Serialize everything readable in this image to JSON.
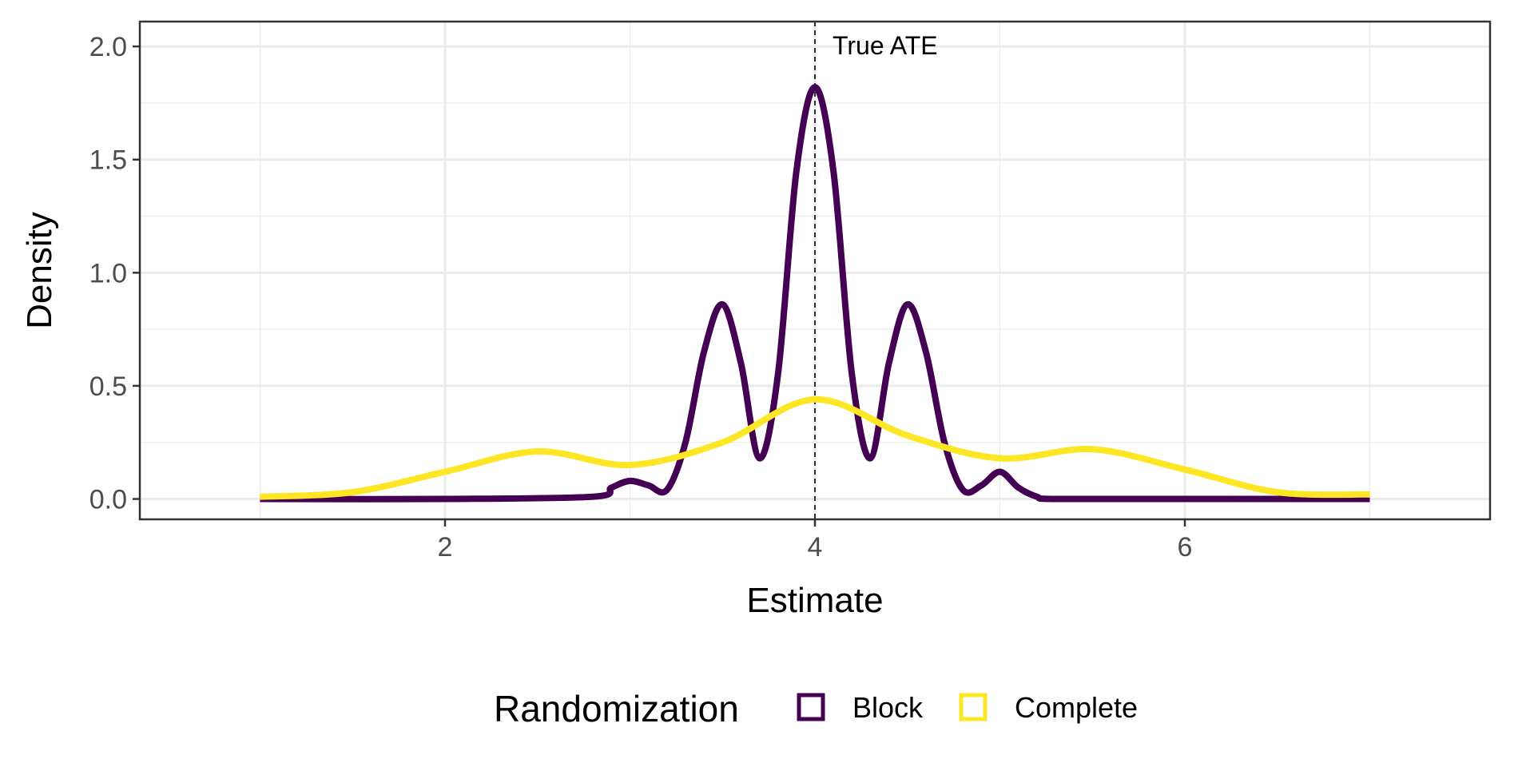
{
  "chart_data": {
    "type": "line",
    "xlabel": "Estimate",
    "ylabel": "Density",
    "xlim": [
      0.35,
      7.65
    ],
    "ylim": [
      -0.09,
      2.11
    ],
    "x_ticks": [
      2,
      4,
      6
    ],
    "x_tick_labels": [
      "2",
      "4",
      "6"
    ],
    "y_ticks": [
      0.0,
      0.5,
      1.0,
      1.5,
      2.0
    ],
    "y_tick_labels": [
      "0.0",
      "0.5",
      "1.0",
      "1.5",
      "2.0"
    ],
    "grid": true,
    "legend": {
      "title": "Randomization",
      "position": "bottom"
    },
    "reference_line": {
      "x": 4,
      "label": "True ATE",
      "style": "dashed"
    },
    "series": [
      {
        "name": "Block",
        "color": "#440154",
        "x": [
          1.0,
          2.0,
          2.8,
          2.9,
          3.0,
          3.1,
          3.2,
          3.3,
          3.4,
          3.5,
          3.6,
          3.7,
          3.8,
          3.9,
          4.0,
          4.1,
          4.2,
          4.3,
          4.4,
          4.5,
          4.6,
          4.7,
          4.8,
          4.9,
          5.0,
          5.1,
          5.2,
          5.3,
          6.0,
          7.0
        ],
        "y": [
          0.0,
          0.0,
          0.01,
          0.05,
          0.08,
          0.06,
          0.04,
          0.25,
          0.65,
          0.86,
          0.6,
          0.18,
          0.55,
          1.45,
          1.82,
          1.45,
          0.55,
          0.18,
          0.6,
          0.86,
          0.65,
          0.25,
          0.04,
          0.06,
          0.12,
          0.05,
          0.01,
          0.0,
          0.0,
          0.0
        ]
      },
      {
        "name": "Complete",
        "color": "#fde725",
        "x": [
          1.0,
          1.5,
          2.0,
          2.5,
          3.0,
          3.5,
          4.0,
          4.5,
          5.0,
          5.5,
          6.0,
          6.5,
          7.0
        ],
        "y": [
          0.01,
          0.03,
          0.12,
          0.21,
          0.15,
          0.25,
          0.44,
          0.28,
          0.18,
          0.22,
          0.13,
          0.03,
          0.02
        ]
      }
    ]
  }
}
